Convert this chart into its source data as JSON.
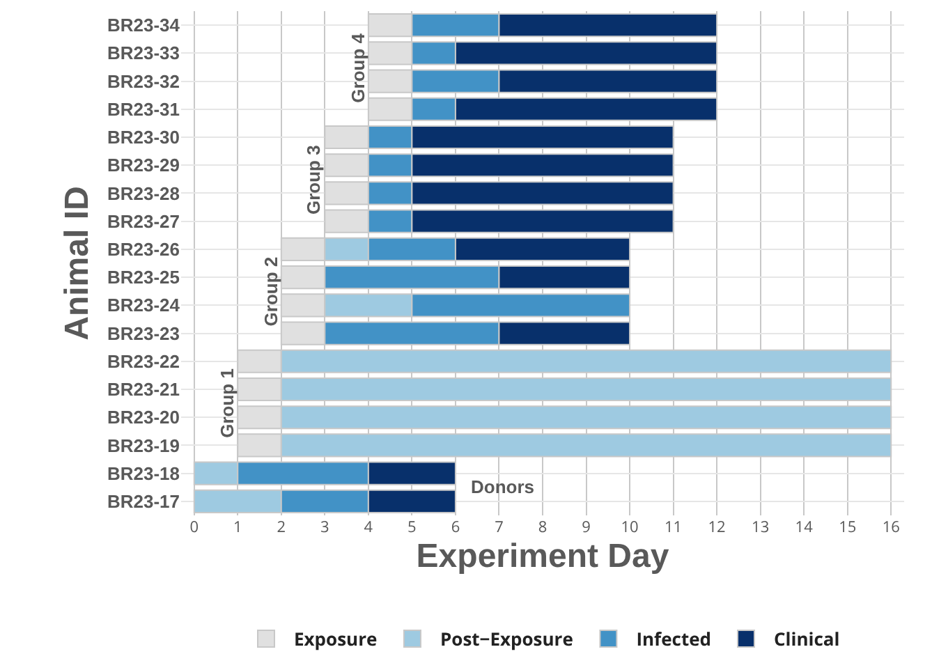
{
  "chart_data": {
    "type": "bar",
    "orientation": "horizontal",
    "xlabel": "Experiment Day",
    "ylabel": "Animal ID",
    "categories": [
      "BR23-34",
      "BR23-33",
      "BR23-32",
      "BR23-31",
      "BR23-30",
      "BR23-29",
      "BR23-28",
      "BR23-27",
      "BR23-26",
      "BR23-25",
      "BR23-24",
      "BR23-23",
      "BR23-22",
      "BR23-21",
      "BR23-20",
      "BR23-19",
      "BR23-18",
      "BR23-17"
    ],
    "series": [
      {
        "name": "Exposure",
        "color": "#e0e0e0",
        "base": [
          4,
          4,
          4,
          4,
          3,
          3,
          3,
          3,
          2,
          2,
          2,
          2,
          1,
          1,
          1,
          1,
          null,
          null
        ],
        "values": [
          1,
          1,
          1,
          1,
          1,
          1,
          1,
          1,
          1,
          1,
          1,
          1,
          1,
          1,
          1,
          1,
          null,
          null
        ]
      },
      {
        "name": "Post−Exposure",
        "color": "#9ecae1",
        "base": [
          null,
          null,
          null,
          null,
          null,
          null,
          null,
          null,
          3,
          null,
          3,
          null,
          2,
          2,
          2,
          2,
          0,
          0
        ],
        "values": [
          null,
          null,
          null,
          null,
          null,
          null,
          null,
          null,
          1,
          null,
          2,
          null,
          14,
          14,
          14,
          14,
          1,
          2
        ]
      },
      {
        "name": "Infected",
        "color": "#4292c6",
        "base": [
          5,
          5,
          5,
          5,
          4,
          4,
          4,
          4,
          4,
          3,
          5,
          3,
          null,
          null,
          null,
          null,
          1,
          2
        ],
        "values": [
          2,
          1,
          2,
          1,
          1,
          1,
          1,
          1,
          2,
          4,
          5,
          4,
          null,
          null,
          null,
          null,
          3,
          2
        ]
      },
      {
        "name": "Clinical",
        "color": "#08306b",
        "base": [
          7,
          6,
          7,
          6,
          5,
          5,
          5,
          5,
          6,
          7,
          null,
          7,
          null,
          null,
          null,
          null,
          4,
          4
        ],
        "values": [
          5,
          6,
          5,
          6,
          6,
          6,
          6,
          6,
          4,
          3,
          null,
          3,
          null,
          null,
          null,
          null,
          2,
          2
        ]
      }
    ],
    "xlim": [
      -0.3,
      16.3
    ],
    "xticks": [
      0,
      1,
      2,
      3,
      4,
      5,
      6,
      7,
      8,
      9,
      10,
      11,
      12,
      13,
      14,
      15,
      16
    ],
    "grid": true,
    "legend": "bottom",
    "annotations": [
      "Group 4",
      "Group 3",
      "Group 2",
      "Group 1",
      "Donors"
    ]
  }
}
